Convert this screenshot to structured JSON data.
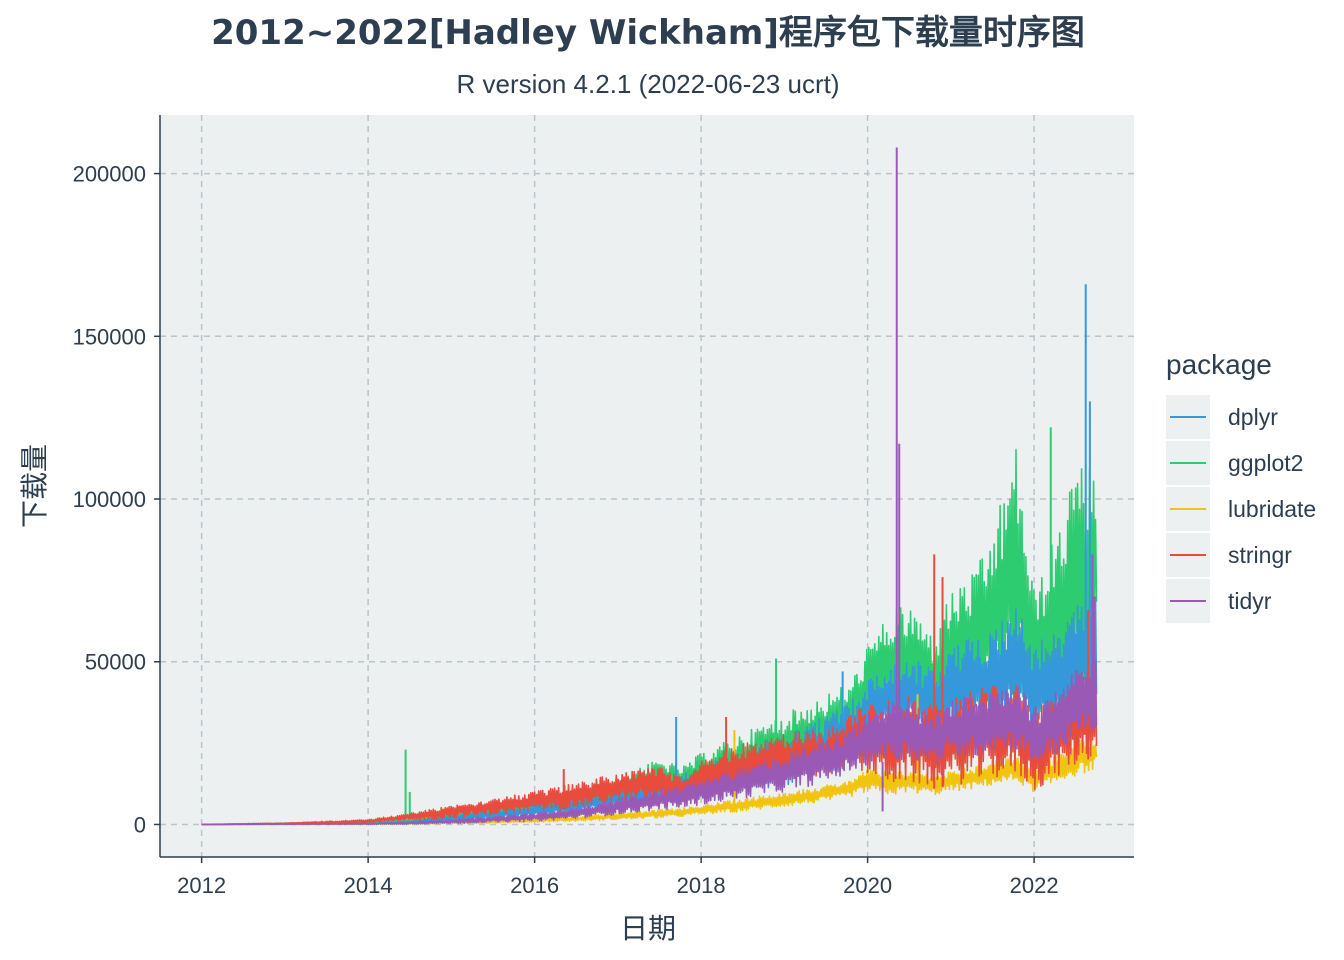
{
  "chart_data": {
    "type": "line",
    "title": "2012~2022[Hadley Wickham]程序包下载量时序图",
    "subtitle": "R version 4.2.1 (2022-06-23 ucrt)",
    "xlabel": "日期",
    "ylabel": "下载量",
    "xlim": [
      2011.5,
      2023.2
    ],
    "ylim": [
      -10000,
      218000
    ],
    "x_ticks": [
      2012,
      2014,
      2016,
      2018,
      2020,
      2022
    ],
    "y_ticks": [
      0,
      50000,
      100000,
      150000,
      200000
    ],
    "grid": true,
    "legend": {
      "title": "package",
      "position": "right"
    },
    "colors": {
      "panel": "#ECF0F1",
      "grid": "#BDC3C7",
      "text": "#2C3E50"
    },
    "series": [
      {
        "name": "dplyr",
        "color": "#3498DB",
        "x": [
          2012.0,
          2014.0,
          2014.5,
          2015.0,
          2015.5,
          2016.0,
          2016.5,
          2017.0,
          2017.5,
          2017.8,
          2018.0,
          2018.5,
          2019.0,
          2019.5,
          2019.8,
          2020.0,
          2020.3,
          2020.5,
          2020.8,
          2021.0,
          2021.3,
          2021.5,
          2021.8,
          2022.0,
          2022.3,
          2022.5,
          2022.65,
          2022.75
        ],
        "low": [
          0,
          0,
          200,
          800,
          1500,
          2500,
          3500,
          5000,
          6500,
          7000,
          8000,
          10000,
          12000,
          15000,
          18000,
          25000,
          27000,
          28000,
          25000,
          27000,
          28000,
          29000,
          30000,
          26000,
          28000,
          30000,
          34000,
          36000
        ],
        "high": [
          0,
          600,
          1200,
          3000,
          4500,
          6000,
          8000,
          11000,
          14000,
          16000,
          18000,
          23000,
          28000,
          34000,
          38000,
          45000,
          50000,
          52000,
          48000,
          55000,
          58000,
          62000,
          68000,
          56000,
          60000,
          66000,
          76000,
          80000
        ],
        "spikes": [
          [
            2017.7,
            33000
          ],
          [
            2019.7,
            47000
          ],
          [
            2022.62,
            166000
          ],
          [
            2022.67,
            130000
          ]
        ]
      },
      {
        "name": "ggplot2",
        "color": "#2ECC71",
        "x": [
          2012.0,
          2014.0,
          2014.5,
          2015.0,
          2015.5,
          2016.0,
          2016.5,
          2017.0,
          2017.5,
          2017.8,
          2018.0,
          2018.5,
          2019.0,
          2019.5,
          2019.8,
          2020.0,
          2020.3,
          2020.5,
          2020.8,
          2021.0,
          2021.3,
          2021.5,
          2021.8,
          2022.0,
          2022.3,
          2022.5,
          2022.65,
          2022.75
        ],
        "low": [
          0,
          300,
          800,
          1500,
          2500,
          4000,
          5000,
          7000,
          9000,
          8000,
          10000,
          13000,
          16000,
          19000,
          22000,
          30000,
          33000,
          34000,
          30000,
          34000,
          36000,
          38000,
          40000,
          30000,
          36000,
          40000,
          44000,
          46000
        ],
        "high": [
          0,
          1000,
          1800,
          3500,
          5500,
          8000,
          10000,
          15000,
          20000,
          18000,
          22000,
          28000,
          34000,
          40000,
          44000,
          55000,
          66000,
          68000,
          58000,
          72000,
          78000,
          90000,
          118000,
          72000,
          92000,
          112000,
          110000,
          112000
        ],
        "spikes": [
          [
            2014.45,
            23000
          ],
          [
            2014.5,
            10000
          ],
          [
            2018.9,
            51000
          ],
          [
            2022.2,
            122000
          ]
        ]
      },
      {
        "name": "lubridate",
        "color": "#F1C40F",
        "x": [
          2012.0,
          2014.0,
          2014.5,
          2015.0,
          2015.5,
          2016.0,
          2016.5,
          2017.0,
          2017.5,
          2017.8,
          2018.0,
          2018.5,
          2019.0,
          2019.5,
          2019.8,
          2020.0,
          2020.3,
          2020.5,
          2020.8,
          2021.0,
          2021.3,
          2021.5,
          2021.8,
          2022.0,
          2022.3,
          2022.5,
          2022.65,
          2022.75
        ],
        "low": [
          0,
          0,
          100,
          200,
          400,
          700,
          1000,
          1500,
          2000,
          2500,
          3000,
          4000,
          5500,
          7000,
          8500,
          10000,
          9000,
          10000,
          9000,
          10000,
          11000,
          12000,
          13000,
          10000,
          13000,
          15000,
          16000,
          17000
        ],
        "high": [
          0,
          300,
          500,
          900,
          1300,
          1800,
          2500,
          3500,
          4500,
          5200,
          6000,
          8000,
          10000,
          12000,
          14000,
          17000,
          16000,
          17000,
          15000,
          17000,
          18000,
          20000,
          22000,
          17000,
          22000,
          26000,
          27000,
          28000
        ],
        "spikes": [
          [
            2018.4,
            29000
          ],
          [
            2020.6,
            40000
          ]
        ]
      },
      {
        "name": "stringr",
        "color": "#E74C3C",
        "x": [
          2012.0,
          2013.0,
          2014.0,
          2014.5,
          2015.0,
          2015.5,
          2016.0,
          2016.5,
          2017.0,
          2017.5,
          2017.8,
          2018.0,
          2018.5,
          2019.0,
          2019.5,
          2019.8,
          2020.0,
          2020.3,
          2020.5,
          2020.8,
          2021.0,
          2021.3,
          2021.5,
          2021.8,
          2022.0,
          2022.3,
          2022.5,
          2022.65,
          2022.75
        ],
        "low": [
          0,
          100,
          600,
          1200,
          2000,
          3000,
          4000,
          5000,
          7000,
          7500,
          7000,
          9000,
          11000,
          13000,
          15000,
          17000,
          15000,
          12000,
          13000,
          11000,
          12000,
          13000,
          14000,
          15000,
          10000,
          15000,
          18000,
          20000,
          22000
        ],
        "high": [
          0,
          500,
          1500,
          3500,
          6000,
          8000,
          10000,
          13000,
          16000,
          18000,
          14000,
          20000,
          25000,
          28000,
          30000,
          34000,
          38000,
          40000,
          40000,
          36000,
          40000,
          42000,
          43000,
          44000,
          36000,
          40000,
          45000,
          50000,
          52000
        ],
        "spikes": [
          [
            2016.35,
            17000
          ],
          [
            2018.3,
            33000
          ],
          [
            2020.8,
            83000
          ],
          [
            2020.9,
            76000
          ],
          [
            2022.65,
            66000
          ]
        ]
      },
      {
        "name": "tidyr",
        "color": "#9B59B6",
        "x": [
          2012.0,
          2014.0,
          2014.5,
          2015.0,
          2015.5,
          2016.0,
          2016.5,
          2017.0,
          2017.5,
          2017.8,
          2018.0,
          2018.5,
          2019.0,
          2019.5,
          2019.8,
          2020.0,
          2020.3,
          2020.5,
          2020.8,
          2021.0,
          2021.3,
          2021.5,
          2021.8,
          2022.0,
          2022.3,
          2022.5,
          2022.65,
          2022.75
        ],
        "low": [
          0,
          0,
          100,
          300,
          600,
          1000,
          1800,
          3000,
          4500,
          5000,
          6000,
          8000,
          10000,
          13000,
          16000,
          18000,
          20000,
          20000,
          18000,
          20000,
          21000,
          22000,
          23000,
          18000,
          22000,
          26000,
          28000,
          30000
        ],
        "high": [
          0,
          400,
          700,
          1500,
          2500,
          3500,
          5000,
          8000,
          11000,
          12000,
          14000,
          18000,
          22000,
          26000,
          30000,
          34000,
          38000,
          38000,
          34000,
          38000,
          40000,
          42000,
          44000,
          36000,
          42000,
          48000,
          52000,
          56000
        ],
        "spikes": [
          [
            2020.35,
            208000
          ],
          [
            2020.38,
            117000
          ],
          [
            2020.18,
            4000
          ],
          [
            2022.7,
            83000
          ],
          [
            2022.72,
            70000
          ]
        ]
      }
    ]
  }
}
